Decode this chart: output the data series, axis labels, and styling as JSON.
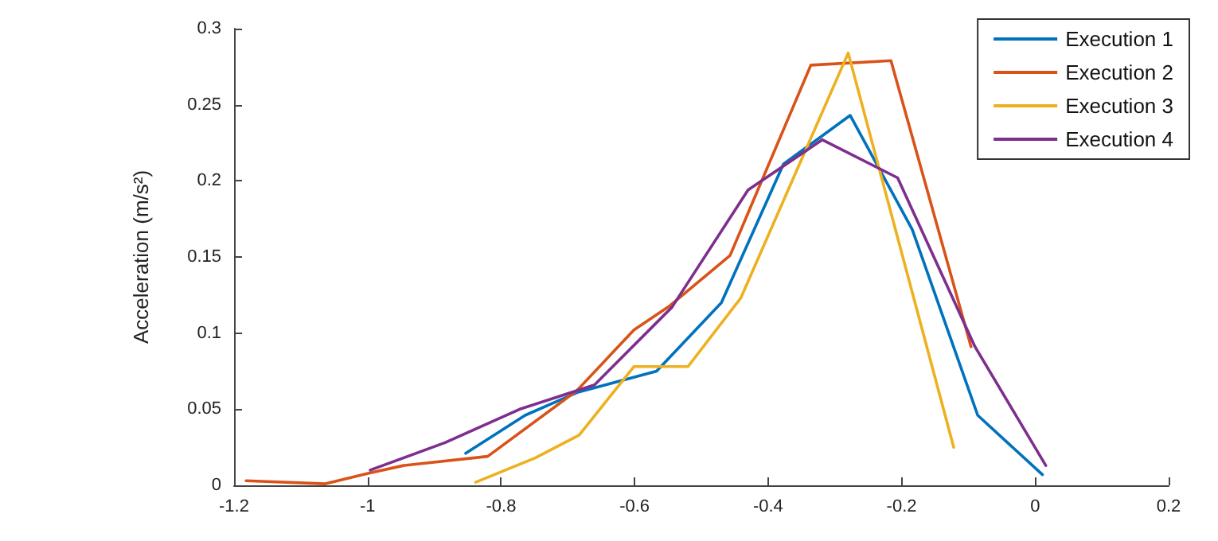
{
  "chart_data": {
    "type": "line",
    "ylabel": "Acceleration (m/s²)",
    "xlim": [
      -1.2,
      0.2
    ],
    "xticks": [
      -1.2,
      -1,
      -0.8,
      -0.6,
      -0.4,
      -0.2,
      0,
      0.2
    ],
    "ylim": [
      0,
      0.3
    ],
    "yticks": [
      0,
      0.05,
      0.1,
      0.15,
      0.2,
      0.25,
      0.3
    ],
    "legend": "top right",
    "grid": false,
    "marker": "none",
    "line_style": "solid",
    "series": [
      {
        "name": "Execution 1",
        "color": "#0072bd",
        "x": [
          -0.853,
          -0.764,
          -0.686,
          -0.567,
          -0.47,
          -0.377,
          -0.277,
          -0.184,
          -0.086,
          0.011
        ],
        "values": [
          0.021,
          0.046,
          0.061,
          0.075,
          0.12,
          0.211,
          0.243,
          0.168,
          0.046,
          0.007
        ]
      },
      {
        "name": "Execution 2",
        "color": "#d95319",
        "x": [
          -1.182,
          -1.063,
          -0.998,
          -0.946,
          -0.82,
          -0.687,
          -0.601,
          -0.547,
          -0.457,
          -0.336,
          -0.216,
          -0.096
        ],
        "values": [
          0.003,
          0.001,
          0.008,
          0.013,
          0.019,
          0.062,
          0.102,
          0.118,
          0.151,
          0.276,
          0.279,
          0.091
        ]
      },
      {
        "name": "Execution 3",
        "color": "#edb120",
        "x": [
          -0.838,
          -0.749,
          -0.683,
          -0.601,
          -0.52,
          -0.441,
          -0.28,
          -0.122
        ],
        "values": [
          0.002,
          0.018,
          0.033,
          0.078,
          0.078,
          0.123,
          0.284,
          0.025
        ]
      },
      {
        "name": "Execution 4",
        "color": "#7e2f8e",
        "x": [
          -0.996,
          -0.884,
          -0.772,
          -0.66,
          -0.544,
          -0.43,
          -0.319,
          -0.206,
          -0.09,
          0.016
        ],
        "values": [
          0.01,
          0.028,
          0.05,
          0.066,
          0.117,
          0.194,
          0.227,
          0.202,
          0.091,
          0.013
        ]
      }
    ]
  }
}
